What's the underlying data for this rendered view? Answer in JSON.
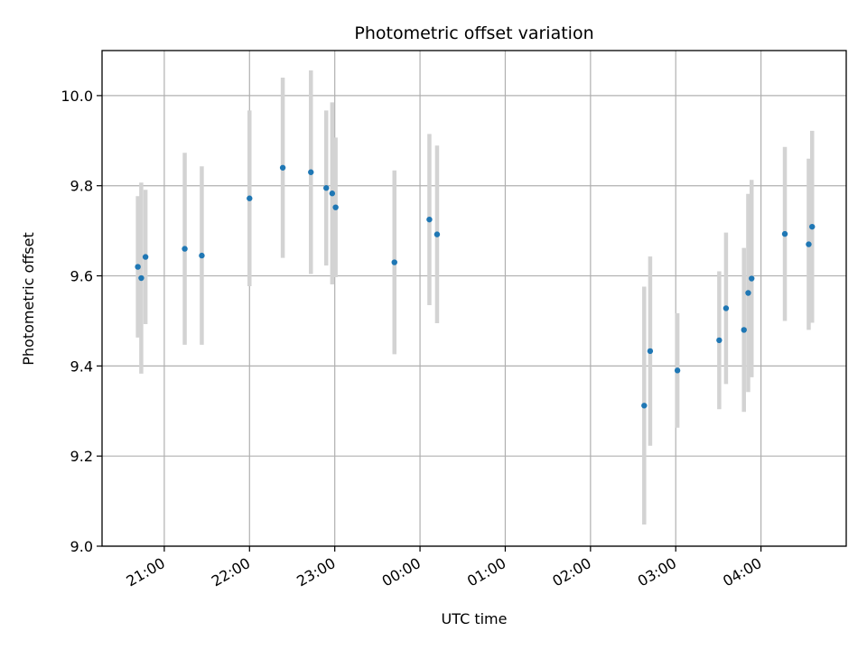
{
  "chart_data": {
    "type": "scatter",
    "title": "Photometric offset variation",
    "xlabel": "UTC time",
    "ylabel": "Photometric offset",
    "xlim": [
      20.27,
      29.0
    ],
    "ylim": [
      9.0,
      10.1
    ],
    "grid": true,
    "x_unit": "hours since 00:00 of first night",
    "x_ticks": [
      {
        "value": 21,
        "label": "21:00"
      },
      {
        "value": 22,
        "label": "22:00"
      },
      {
        "value": 23,
        "label": "23:00"
      },
      {
        "value": 24,
        "label": "00:00"
      },
      {
        "value": 25,
        "label": "01:00"
      },
      {
        "value": 26,
        "label": "02:00"
      },
      {
        "value": 27,
        "label": "03:00"
      },
      {
        "value": 28,
        "label": "04:00"
      }
    ],
    "y_ticks": [
      {
        "value": 9.0,
        "label": "9.0"
      },
      {
        "value": 9.2,
        "label": "9.2"
      },
      {
        "value": 9.4,
        "label": "9.4"
      },
      {
        "value": 9.6,
        "label": "9.6"
      },
      {
        "value": 9.8,
        "label": "9.8"
      },
      {
        "value": 10.0,
        "label": "10.0"
      }
    ],
    "colors": {
      "point": "#1f77b4",
      "errorbar": "#d3d3d3",
      "grid": "#b0b0b0",
      "axes": "#000000"
    },
    "series": [
      {
        "name": "Photometric offset",
        "points": [
          {
            "x": 20.69,
            "y": 9.62,
            "err": 0.157
          },
          {
            "x": 20.73,
            "y": 9.595,
            "err": 0.212
          },
          {
            "x": 20.78,
            "y": 9.642,
            "err": 0.149
          },
          {
            "x": 21.24,
            "y": 9.66,
            "err": 0.213
          },
          {
            "x": 21.44,
            "y": 9.645,
            "err": 0.198
          },
          {
            "x": 22.0,
            "y": 9.772,
            "err": 0.195
          },
          {
            "x": 22.39,
            "y": 9.84,
            "err": 0.2
          },
          {
            "x": 22.72,
            "y": 9.83,
            "err": 0.226
          },
          {
            "x": 22.9,
            "y": 9.795,
            "err": 0.172
          },
          {
            "x": 22.97,
            "y": 9.783,
            "err": 0.202
          },
          {
            "x": 23.01,
            "y": 9.752,
            "err": 0.155
          },
          {
            "x": 23.7,
            "y": 9.63,
            "err": 0.204
          },
          {
            "x": 24.11,
            "y": 9.725,
            "err": 0.19
          },
          {
            "x": 24.2,
            "y": 9.692,
            "err": 0.197
          },
          {
            "x": 26.63,
            "y": 9.312,
            "err": 0.264
          },
          {
            "x": 26.7,
            "y": 9.433,
            "err": 0.21
          },
          {
            "x": 27.02,
            "y": 9.39,
            "err": 0.127
          },
          {
            "x": 27.51,
            "y": 9.457,
            "err": 0.153
          },
          {
            "x": 27.59,
            "y": 9.528,
            "err": 0.168
          },
          {
            "x": 27.8,
            "y": 9.48,
            "err": 0.182
          },
          {
            "x": 27.85,
            "y": 9.562,
            "err": 0.22
          },
          {
            "x": 27.89,
            "y": 9.594,
            "err": 0.219
          },
          {
            "x": 28.28,
            "y": 9.693,
            "err": 0.193
          },
          {
            "x": 28.56,
            "y": 9.67,
            "err": 0.19
          },
          {
            "x": 28.6,
            "y": 9.709,
            "err": 0.213
          }
        ]
      }
    ]
  }
}
